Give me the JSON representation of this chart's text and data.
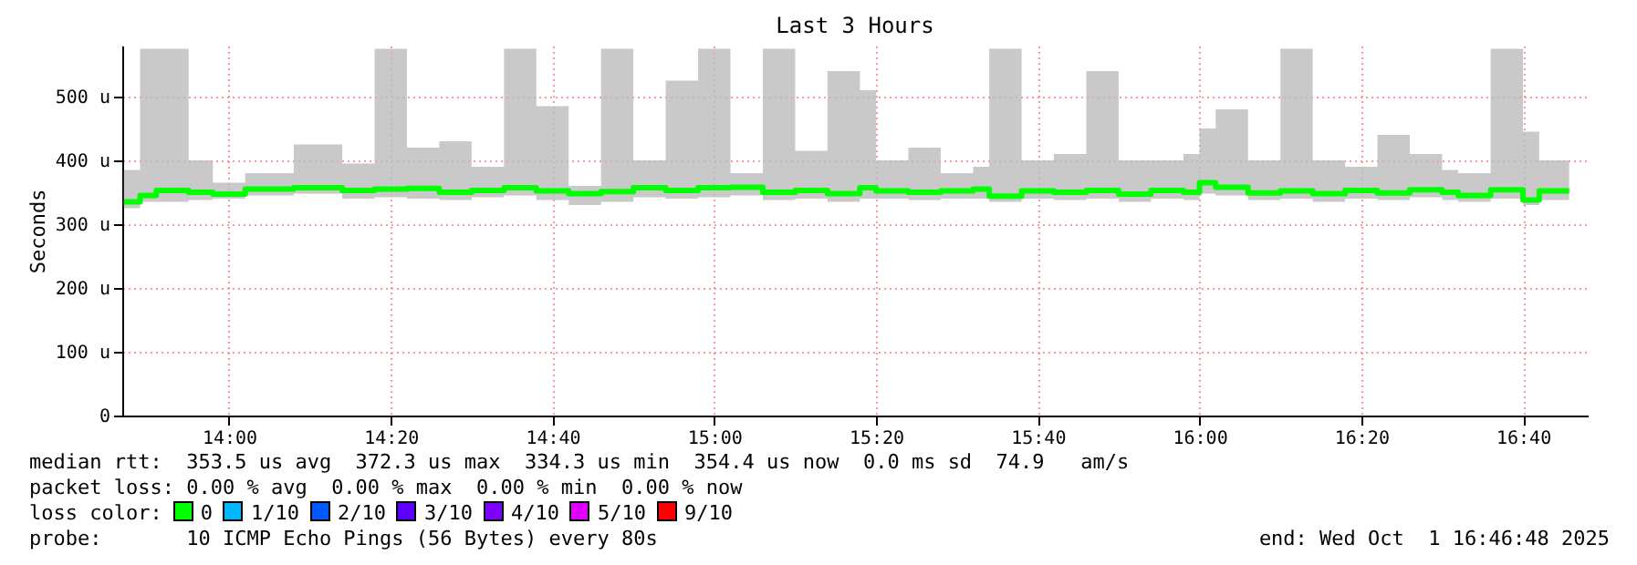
{
  "chart_data": {
    "type": "step",
    "title": "Last 3 Hours",
    "ylabel": "Seconds",
    "x": [
      13.7833,
      13.8167,
      13.85,
      13.9167,
      13.9667,
      14.0333,
      14.1333,
      14.2333,
      14.3,
      14.3667,
      14.4333,
      14.5,
      14.5667,
      14.6333,
      14.7,
      14.7667,
      14.8333,
      14.9,
      14.9667,
      15.0333,
      15.1,
      15.1667,
      15.2333,
      15.3,
      15.3333,
      15.4,
      15.4667,
      15.5333,
      15.5667,
      15.6333,
      15.7,
      15.7667,
      15.8333,
      15.9,
      15.9667,
      16.0,
      16.0333,
      16.1,
      16.1667,
      16.2333,
      16.3,
      16.3667,
      16.4333,
      16.5,
      16.5333,
      16.6,
      16.6667,
      16.7,
      16.7617
    ],
    "series": [
      {
        "color": "#00ff00",
        "values": [
          335,
          345,
          353,
          350,
          347,
          355,
          357,
          353,
          355,
          356,
          350,
          353,
          357,
          352,
          348,
          351,
          357,
          353,
          357,
          358,
          350,
          353,
          348,
          357,
          352,
          350,
          352,
          355,
          344,
          352,
          350,
          353,
          347,
          353,
          350,
          365,
          358,
          349,
          352,
          348,
          353,
          349,
          354,
          350,
          345,
          354,
          338,
          352,
          352
        ],
        "lower": [
          325,
          335,
          335,
          338,
          340,
          345,
          348,
          340,
          342,
          340,
          338,
          342,
          345,
          338,
          330,
          335,
          342,
          340,
          342,
          345,
          338,
          340,
          335,
          340,
          340,
          338,
          340,
          340,
          335,
          340,
          338,
          340,
          335,
          340,
          338,
          348,
          345,
          338,
          340,
          335,
          340,
          338,
          342,
          338,
          335,
          340,
          330,
          338,
          340
        ],
        "upper": [
          385,
          575,
          575,
          400,
          365,
          380,
          425,
          395,
          575,
          420,
          430,
          390,
          575,
          485,
          360,
          575,
          400,
          525,
          575,
          380,
          575,
          415,
          540,
          510,
          400,
          420,
          380,
          390,
          575,
          400,
          410,
          540,
          400,
          400,
          410,
          450,
          480,
          400,
          575,
          400,
          390,
          440,
          410,
          385,
          380,
          575,
          445,
          400,
          575
        ]
      }
    ],
    "xlim": [
      13.78,
      16.8
    ],
    "xticks": [
      {
        "value": 14,
        "label": "14:00"
      },
      {
        "value": 14.333333,
        "label": "14:20"
      },
      {
        "value": 14.666667,
        "label": "14:40"
      },
      {
        "value": 15,
        "label": "15:00"
      },
      {
        "value": 15.333333,
        "label": "15:20"
      },
      {
        "value": 15.666667,
        "label": "15:40"
      },
      {
        "value": 16,
        "label": "16:00"
      },
      {
        "value": 16.333333,
        "label": "16:20"
      },
      {
        "value": 16.666667,
        "label": "16:40"
      }
    ],
    "ylim": [
      0,
      580
    ],
    "yticks": [
      0,
      {
        "value": 100,
        "label": "100 u"
      },
      {
        "value": 200,
        "label": "200 u"
      },
      {
        "value": 300,
        "label": "300 u"
      },
      {
        "value": 400,
        "label": "400 u"
      },
      {
        "value": 500,
        "label": "500 u"
      }
    ],
    "grid": true,
    "annotations": [
      "median rtt:  353.5 us avg  372.3 us max  334.3 us min  354.4 us now  0.0 ms sd  74.9   am/s",
      "packet loss: 0.00 % avg  0.00 % max  0.00 % min  0.00 % now",
      "loss color:  0  1/10  2/10  3/10  4/10  5/10  9/10",
      "probe:       10 ICMP Echo Pings (56 Bytes) every 80s",
      "end: Wed Oct  1 16:46:48 2025"
    ]
  }
}
